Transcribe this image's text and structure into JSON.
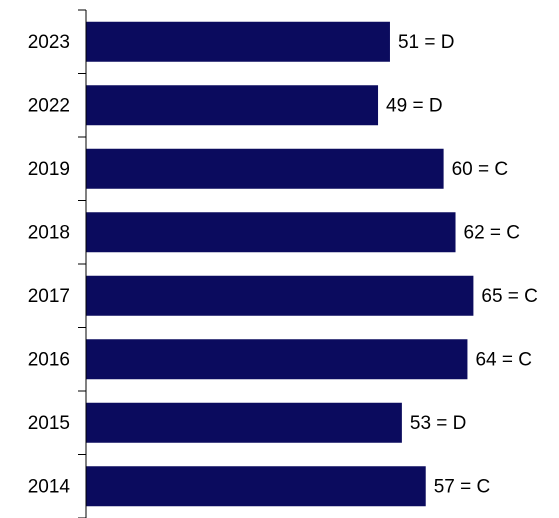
{
  "chart_data": {
    "type": "bar",
    "orientation": "horizontal",
    "categories": [
      "2023",
      "2022",
      "2019",
      "2018",
      "2017",
      "2016",
      "2015",
      "2014"
    ],
    "values": [
      51,
      49,
      60,
      62,
      65,
      64,
      53,
      57
    ],
    "value_labels": [
      "51 = D",
      "49 = D",
      "60 = C",
      "62 = C",
      "65 = C",
      "64 = C",
      "53 = D",
      "57 = C"
    ],
    "color": "#0b0b5e"
  }
}
